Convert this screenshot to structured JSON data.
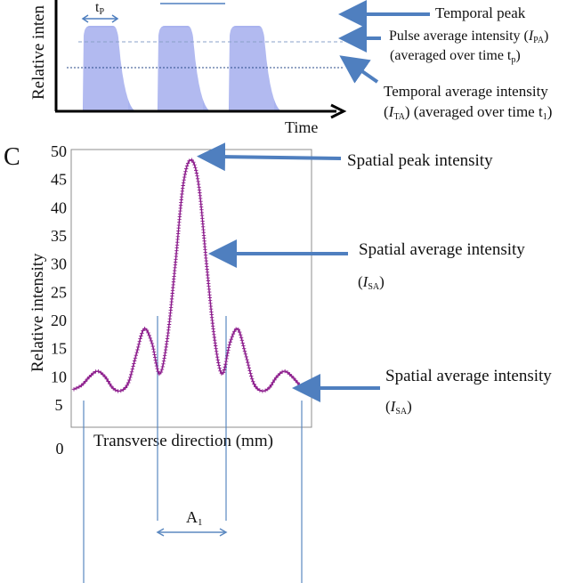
{
  "panel_b": {
    "ylabel": "Relative inten",
    "xlabel": "Time",
    "tp_label": "t",
    "tp_sub": "P",
    "ann_temporal_peak": "Temporal peak",
    "ann_pulse_avg_line1_prefix": "Pulse average intensity (",
    "ann_pulse_avg_I": "I",
    "ann_pulse_avg_sub": "PA",
    "ann_pulse_avg_suffix": ")",
    "ann_pulse_avg_line2": "(averaged over time t",
    "ann_pulse_avg_line2_sub": "p",
    "ann_pulse_avg_line2_end": ")",
    "ann_temporal_avg_line1": "Temporal average intensity",
    "ann_temporal_avg_line2_prefix": "(",
    "ann_temporal_avg_I": "I",
    "ann_temporal_avg_sub": "TA",
    "ann_temporal_avg_line2_suffix": ") (averaged over time t",
    "ann_temporal_avg_line2_sub": "1",
    "ann_temporal_avg_line2_end": ")",
    "pulse_color": "#9aa6ec",
    "arrow_color": "#4f7fbf"
  },
  "panel_c": {
    "letter": "C",
    "xlabel": "Transverse direction (mm)",
    "ylabel": "Relative intensity",
    "zero_label": "0",
    "a1_label": "A",
    "a1_sub": "1",
    "ann_spatial_peak": "Spatial peak intensity",
    "ann_spatial_avg_1": "Spatial average intensity",
    "ann_spatial_avg_1_I": "I",
    "ann_spatial_avg_1_sub": "SA",
    "ann_spatial_avg_2": "Spatial average intensity",
    "ann_spatial_avg_2_I": "I",
    "ann_spatial_avg_2_sub": "SA",
    "curve_color": "#8b1a8b",
    "arrow_color": "#4f7fbf",
    "line_color": "#5b88c0"
  },
  "chart_data": {
    "type": "line",
    "ylim": [
      5,
      50
    ],
    "yticks": [
      50,
      45,
      40,
      35,
      30,
      25,
      20,
      15,
      10,
      5
    ],
    "series": [
      {
        "values": [
          7.8,
          8.5,
          10.0,
          11.0,
          10.0,
          8.0,
          7.5,
          9.0,
          14.0,
          18.5,
          16.0,
          10.5,
          17.0,
          30.0,
          44.0,
          48.5,
          44.0,
          30.0,
          17.0,
          10.5,
          16.0,
          18.5,
          14.0,
          9.0,
          7.5,
          8.0,
          10.0,
          11.0,
          10.0,
          8.5,
          7.8
        ]
      }
    ]
  }
}
